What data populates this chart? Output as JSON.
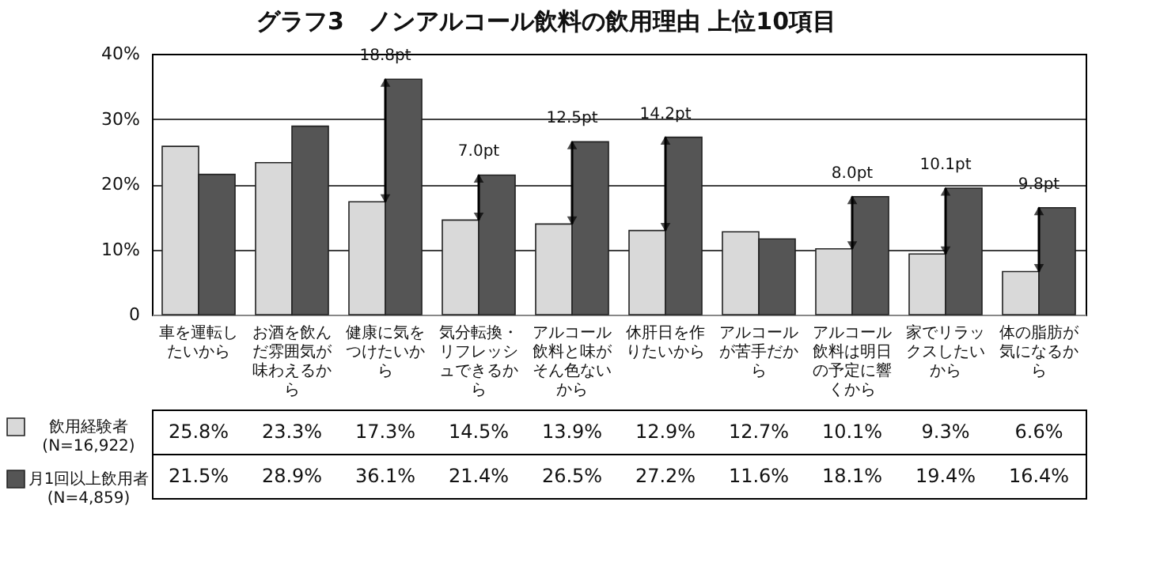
{
  "chart_data": {
    "type": "bar",
    "title": "グラフ3　ノンアルコール飲料の飲用理由 上位10項目",
    "categories": [
      "車を運転したいから",
      "お酒を飲んだ雰囲気が味わえるから",
      "健康に気をつけたいから",
      "気分転換・リフレッシュできるから",
      "アルコール飲料と味がそん色ないから",
      "休肝日を作りたいから",
      "アルコールが苦手だから",
      "アルコール飲料は明日の予定に響くから",
      "家でリラックスしたいから",
      "体の脂肪が気になるから"
    ],
    "series": [
      {
        "name": "飲用経験者 (N=16,922)",
        "color": "#d9d9d9",
        "values": [
          25.8,
          23.3,
          17.3,
          14.5,
          13.9,
          12.9,
          12.7,
          10.1,
          9.3,
          6.6
        ],
        "value_labels": [
          "25.8%",
          "23.3%",
          "17.3%",
          "14.5%",
          "13.9%",
          "12.9%",
          "12.7%",
          "10.1%",
          "9.3%",
          "6.6%"
        ]
      },
      {
        "name": "月1回以上飲用者 (N=4,859)",
        "color": "#555555",
        "values": [
          21.5,
          28.9,
          36.1,
          21.4,
          26.5,
          27.2,
          11.6,
          18.1,
          19.4,
          16.4
        ],
        "value_labels": [
          "21.5%",
          "28.9%",
          "36.1%",
          "21.4%",
          "26.5%",
          "27.2%",
          "11.6%",
          "18.1%",
          "19.4%",
          "16.4%"
        ]
      }
    ],
    "ylim": [
      0,
      40
    ],
    "yticks": [
      {
        "value": 0,
        "label": "0"
      },
      {
        "value": 10,
        "label": "10%"
      },
      {
        "value": 20,
        "label": "20%"
      },
      {
        "value": 30,
        "label": "30%"
      },
      {
        "value": 40,
        "label": "40%"
      }
    ],
    "grid": "y",
    "legend": "bottom",
    "annotations": [
      {
        "text": "18.8pt",
        "x": "健康に気をつけたいから",
        "y": 36.1
      },
      {
        "text": "7.0pt",
        "x": "気分転換・リフレッシュできるから",
        "y": 21.4
      },
      {
        "text": "12.5pt",
        "x": "アルコール飲料と味がそん色ないから",
        "y": 26.5
      },
      {
        "text": "14.2pt",
        "x": "休肝日を作りたいから",
        "y": 27.2
      },
      {
        "text": "8.0pt",
        "x": "アルコール飲料は明日の予定に響くから",
        "y": 18.1
      },
      {
        "text": "10.1pt",
        "x": "家でリラックスしたいから",
        "y": 19.4
      },
      {
        "text": "9.8pt",
        "x": "体の脂肪が気になるから",
        "y": 16.4
      }
    ]
  }
}
